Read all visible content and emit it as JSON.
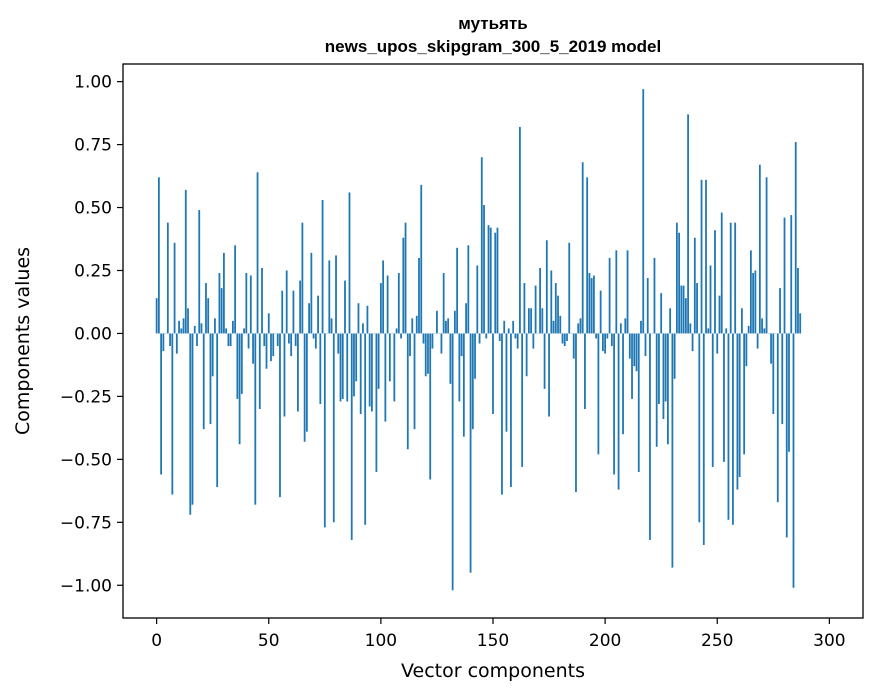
{
  "chart_data": {
    "type": "bar",
    "title": "мутьять",
    "subtitle": "news_upos_skipgram_300_5_2019 model",
    "xlabel": "Vector components",
    "ylabel": "Components values",
    "xlim": [
      -15,
      315
    ],
    "ylim": [
      -1.13,
      1.07
    ],
    "xticks": [
      0,
      50,
      100,
      150,
      200,
      250,
      300
    ],
    "xtick_labels": [
      "0",
      "50",
      "100",
      "150",
      "200",
      "250",
      "300"
    ],
    "yticks": [
      1.0,
      0.75,
      0.5,
      0.25,
      0.0,
      -0.25,
      -0.5,
      -0.75,
      -1.0
    ],
    "ytick_labels": [
      "1.00",
      "0.75",
      "0.50",
      "0.25",
      "0.00",
      "−0.25",
      "−0.50",
      "−0.75",
      "−1.00"
    ],
    "bar_color": "#1f77b4",
    "series": [
      {
        "name": "components",
        "values": [
          0.14,
          0.62,
          -0.56,
          -0.07,
          0.0,
          0.44,
          -0.05,
          -0.64,
          0.36,
          -0.08,
          0.05,
          0.02,
          0.06,
          0.57,
          0.1,
          -0.72,
          -0.68,
          0.03,
          -0.05,
          0.49,
          0.04,
          -0.38,
          0.2,
          0.14,
          -0.36,
          -0.17,
          0.06,
          -0.61,
          0.24,
          0.18,
          0.32,
          0.02,
          -0.05,
          -0.05,
          0.05,
          0.35,
          -0.26,
          -0.44,
          -0.24,
          0.02,
          0.24,
          -0.06,
          0.23,
          -0.12,
          -0.68,
          0.64,
          -0.3,
          0.26,
          -0.05,
          -0.14,
          0.08,
          -0.11,
          -0.09,
          0.0,
          -0.05,
          -0.65,
          0.17,
          -0.33,
          0.25,
          -0.04,
          -0.09,
          0.17,
          -0.05,
          -0.31,
          0.21,
          0.44,
          -0.43,
          -0.39,
          0.12,
          0.32,
          -0.02,
          -0.06,
          0.15,
          -0.28,
          0.53,
          -0.77,
          0.0,
          0.29,
          0.06,
          -0.75,
          0.31,
          -0.08,
          -0.27,
          -0.26,
          0.21,
          -0.27,
          0.56,
          -0.82,
          -0.25,
          -0.19,
          0.12,
          -0.32,
          0.04,
          -0.76,
          0.11,
          -0.29,
          -0.31,
          0.0,
          -0.55,
          -0.22,
          0.2,
          0.29,
          -0.35,
          0.23,
          -0.19,
          0.0,
          -0.27,
          0.02,
          0.24,
          -0.02,
          0.38,
          0.44,
          -0.46,
          -0.09,
          0.06,
          -0.38,
          0.07,
          0.3,
          0.59,
          -0.04,
          -0.17,
          -0.16,
          -0.58,
          -0.06,
          0.0,
          0.09,
          0.0,
          -0.08,
          0.24,
          0.05,
          0.06,
          -0.2,
          -1.02,
          0.09,
          0.34,
          -0.27,
          -0.09,
          -0.41,
          0.12,
          0.35,
          -0.95,
          -0.38,
          -0.18,
          0.27,
          -0.04,
          0.7,
          0.51,
          -0.02,
          0.43,
          0.42,
          -0.32,
          0.4,
          0.42,
          -0.03,
          -0.64,
          0.05,
          -0.39,
          0.02,
          -0.61,
          0.05,
          -0.02,
          -0.06,
          0.82,
          -0.53,
          0.2,
          -0.17,
          0.1,
          0.1,
          -0.06,
          0.19,
          0.0,
          0.26,
          0.1,
          -0.22,
          0.37,
          -0.33,
          0.25,
          0.05,
          0.2,
          0.15,
          0.07,
          -0.04,
          -0.05,
          -0.03,
          0.36,
          0.0,
          -0.1,
          -0.63,
          0.04,
          0.06,
          0.68,
          -0.3,
          0.62,
          0.24,
          0.22,
          0.23,
          -0.02,
          -0.48,
          0.17,
          -0.07,
          -0.08,
          -0.02,
          0.3,
          -0.05,
          -0.56,
          0.33,
          -0.62,
          0.04,
          -0.4,
          0.06,
          0.33,
          -0.1,
          -0.26,
          -0.13,
          -0.15,
          -0.55,
          0.05,
          0.97,
          -0.09,
          0.22,
          -0.82,
          0.0,
          0.3,
          -0.45,
          -0.28,
          0.16,
          -0.34,
          -0.27,
          -0.44,
          0.1,
          -0.93,
          -0.18,
          0.44,
          0.4,
          0.19,
          0.19,
          0.14,
          0.87,
          0.04,
          -0.07,
          0.38,
          0.2,
          -0.75,
          0.61,
          -0.84,
          0.61,
          0.02,
          0.27,
          -0.53,
          0.41,
          -0.08,
          0.15,
          0.48,
          -0.51,
          0.02,
          -0.74,
          0.44,
          -0.76,
          0.44,
          -0.62,
          -0.57,
          0.1,
          -0.48,
          -0.13,
          0.03,
          0.33,
          0.24,
          0.25,
          -0.06,
          0.67,
          0.06,
          0.02,
          0.62,
          0.0,
          -0.12,
          -0.32,
          0.0,
          -0.67,
          0.18,
          -0.36,
          0.46,
          -0.81,
          -0.47,
          0.47,
          -1.01,
          0.76,
          0.26,
          0.08
        ]
      }
    ]
  }
}
